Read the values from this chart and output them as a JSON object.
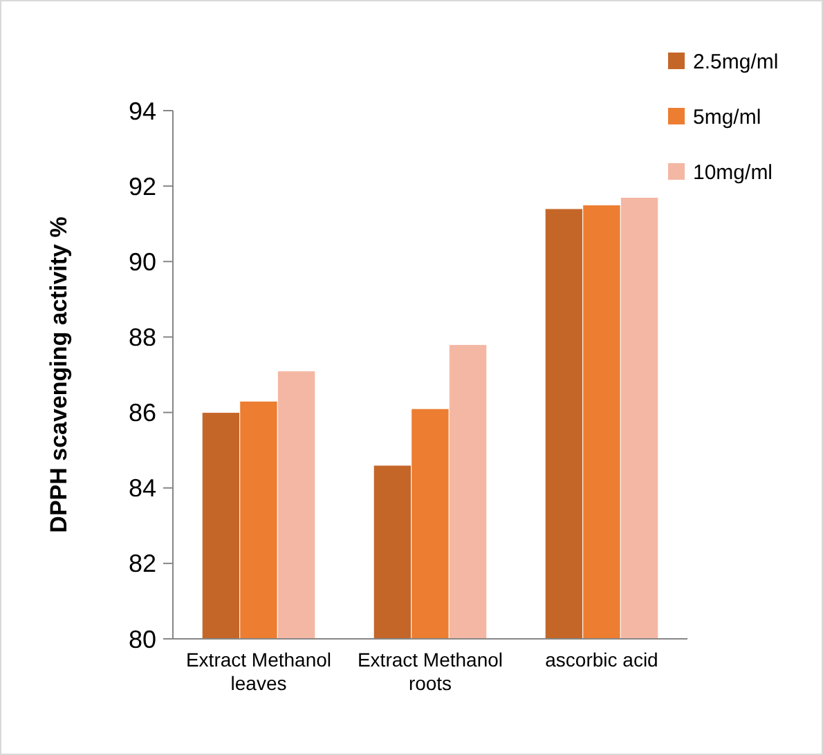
{
  "chart_data": {
    "type": "bar",
    "ylabel": "DPPH scavenging activity %",
    "categories": [
      "Extract Methanol leaves",
      "Extract Methanol roots",
      "ascorbic acid"
    ],
    "series": [
      {
        "name": "2.5mg/ml",
        "color": "#c46628",
        "values": [
          86.0,
          84.6,
          91.4
        ]
      },
      {
        "name": "5mg/ml",
        "color": "#ed7d31",
        "values": [
          86.3,
          86.1,
          91.5
        ]
      },
      {
        "name": "10mg/ml",
        "color": "#f4b7a4",
        "values": [
          87.1,
          87.8,
          91.7
        ]
      }
    ],
    "ylim": [
      80,
      94
    ],
    "yticks": [
      80,
      82,
      84,
      86,
      88,
      90,
      92,
      94
    ],
    "grid": false,
    "legend": "top right"
  }
}
